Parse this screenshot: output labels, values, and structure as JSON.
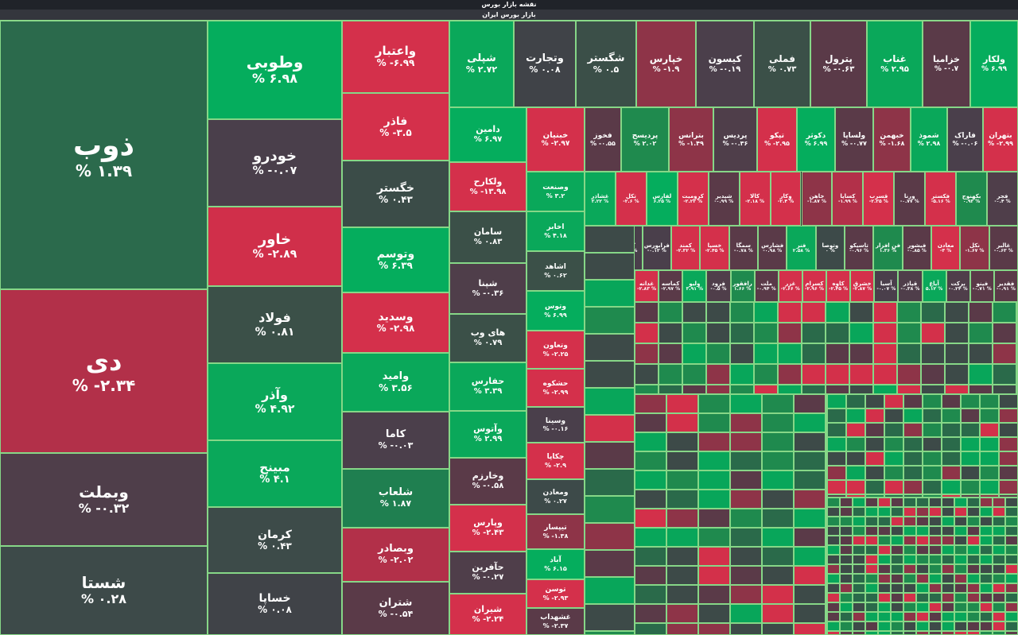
{
  "header": {
    "title": "نقشه بازار بورس",
    "subtitle": "بازار بورس ایران"
  },
  "colors": {
    "strong_green": "#08a65a",
    "green": "#1f8a4e",
    "dark_green": "#2a6a4a",
    "neutral": "#3d4a48",
    "dark_red": "#5a3a48",
    "red": "#b0304a",
    "strong_red": "#d3304a",
    "border": "#86d787"
  },
  "tiles": [
    {
      "symbol": "ذوب",
      "change": "% ۱.۳۹",
      "color": "#2b6a4c"
    },
    {
      "symbol": "دی",
      "change": "% -۲.۳۴",
      "color": "#b23049"
    },
    {
      "symbol": "وبملت",
      "change": "% -۰.۳۲",
      "color": "#4f3e4a"
    },
    {
      "symbol": "شستا",
      "change": "% ۰.۲۸",
      "color": "#3d4a49"
    },
    {
      "symbol": "وطوبی",
      "change": "% ۶.۹۸",
      "color": "#05ad5d"
    },
    {
      "symbol": "خودرو",
      "change": "% -۰.۰۷",
      "color": "#4a3f4b"
    },
    {
      "symbol": "خاور",
      "change": "% -۲.۸۹",
      "color": "#d02f4a"
    },
    {
      "symbol": "فولاد",
      "change": "% ۰.۸۱",
      "color": "#3b5048"
    },
    {
      "symbol": "وآذر",
      "change": "% ۴.۹۲",
      "color": "#0aa85a"
    },
    {
      "symbol": "مبینح",
      "change": "% ۴.۱",
      "color": "#0aa85a"
    },
    {
      "symbol": "کرمان",
      "change": "% ۰.۴۳",
      "color": "#3d4b49"
    },
    {
      "symbol": "خساپا",
      "change": "% ۰.۰۸",
      "color": "#404348"
    },
    {
      "symbol": "واعتبار",
      "change": "% -۶.۹۹",
      "color": "#d4304b"
    },
    {
      "symbol": "فاذر",
      "change": "% -۳.۵",
      "color": "#d4304b"
    },
    {
      "symbol": "خگستر",
      "change": "% ۰.۴۳",
      "color": "#3b4c48"
    },
    {
      "symbol": "وتوسم",
      "change": "% ۶.۳۹",
      "color": "#05ad5d"
    },
    {
      "symbol": "وسدید",
      "change": "% -۲.۹۸",
      "color": "#d4304b"
    },
    {
      "symbol": "وامید",
      "change": "% ۳.۵۶",
      "color": "#0aa85a"
    },
    {
      "symbol": "کاما",
      "change": "% -۰.۰۳",
      "color": "#4b3f4b"
    },
    {
      "symbol": "شلعاب",
      "change": "% ۱.۸۷",
      "color": "#1f7f50"
    },
    {
      "symbol": "وبصادر",
      "change": "% -۲.۰۲",
      "color": "#b23049"
    },
    {
      "symbol": "شتران",
      "change": "% -۰.۵۴",
      "color": "#5a3a48"
    },
    {
      "symbol": "شپلی",
      "change": "% ۲.۷۲",
      "color": "#0aa85a"
    },
    {
      "symbol": "وتجارت",
      "change": "% ۰.۰۸",
      "color": "#404348"
    },
    {
      "symbol": "شگستر",
      "change": "% ۰.۵",
      "color": "#3b4f48"
    },
    {
      "symbol": "خپارس",
      "change": "% -۱.۹",
      "color": "#8e3448"
    },
    {
      "symbol": "کیسون",
      "change": "% -۰.۱۹",
      "color": "#4b3f4b"
    },
    {
      "symbol": "فملی",
      "change": "% ۰.۷۳",
      "color": "#3b5048"
    },
    {
      "symbol": "پترول",
      "change": "% -۰.۶۳",
      "color": "#5a3a48"
    },
    {
      "symbol": "غناب",
      "change": "% ۲.۹۵",
      "color": "#0aa85a"
    },
    {
      "symbol": "خزامیا",
      "change": "% -۰.۷",
      "color": "#5a3a48"
    },
    {
      "symbol": "ولکار",
      "change": "% ۶.۹۹",
      "color": "#05ad5d"
    },
    {
      "symbol": "دامین",
      "change": "% ۶.۹۷",
      "color": "#05ad5d"
    },
    {
      "symbol": "ولکارح",
      "change": "% -۱۳.۹۸",
      "color": "#d4304b"
    },
    {
      "symbol": "سامان",
      "change": "% ۰.۸۳",
      "color": "#3b5048"
    },
    {
      "symbol": "شپنا",
      "change": "% -۰.۳۶",
      "color": "#4f3e4a"
    },
    {
      "symbol": "های وب",
      "change": "% ۰.۷۹",
      "color": "#3b5048"
    },
    {
      "symbol": "حفارس",
      "change": "% ۳.۳۹",
      "color": "#0aa85a"
    },
    {
      "symbol": "وآتوس",
      "change": "% ۲.۹۹",
      "color": "#0aa85a"
    },
    {
      "symbol": "وخارزم",
      "change": "% -۰.۵۸",
      "color": "#5a3a48"
    },
    {
      "symbol": "وپارس",
      "change": "% -۲.۴۳",
      "color": "#d4304b"
    },
    {
      "symbol": "حآفرین",
      "change": "% -۰.۲۷",
      "color": "#4f3e4a"
    },
    {
      "symbol": "شیران",
      "change": "% -۲.۲۴",
      "color": "#d4304b"
    },
    {
      "symbol": "خبنیان",
      "change": "% -۲.۹۷",
      "color": "#d4304b"
    },
    {
      "symbol": "فخوز",
      "change": "% -۰.۵۵",
      "color": "#5a3a48"
    },
    {
      "symbol": "پردیسح",
      "change": "% ۲.۰۲",
      "color": "#1f8a4e"
    },
    {
      "symbol": "بترانس",
      "change": "% -۱.۴۹",
      "color": "#8e3448"
    },
    {
      "symbol": "پردیس",
      "change": "% -۰.۳۶",
      "color": "#4f3e4a"
    },
    {
      "symbol": "تپکو",
      "change": "% -۲.۹۵",
      "color": "#d4304b"
    },
    {
      "symbol": "دکوثر",
      "change": "% ۶.۹۹",
      "color": "#05ad5d"
    },
    {
      "symbol": "ولساپا",
      "change": "% -۰.۷۷",
      "color": "#5a3a48"
    },
    {
      "symbol": "خبهمن",
      "change": "% -۱.۶۸",
      "color": "#8e3448"
    },
    {
      "symbol": "شموذ",
      "change": "% ۲.۹۸",
      "color": "#0aa85a"
    },
    {
      "symbol": "فاراک",
      "change": "% -۰.۰۶",
      "color": "#4a3f4b"
    },
    {
      "symbol": "بتهران",
      "change": "% -۲.۹۹",
      "color": "#d4304b"
    },
    {
      "symbol": "وصنعت",
      "change": "% ۳.۲",
      "color": "#0aa85a"
    },
    {
      "symbol": "اخابر",
      "change": "% ۴.۱۸",
      "color": "#0aa85a"
    },
    {
      "symbol": "اشاهد",
      "change": "% ۰.۶۲",
      "color": "#3b5048"
    },
    {
      "symbol": "وتوس",
      "change": "% ۶.۹۹",
      "color": "#05ad5d"
    },
    {
      "symbol": "وتعاون",
      "change": "% -۲.۲۵",
      "color": "#d4304b"
    },
    {
      "symbol": "حشکوه",
      "change": "% -۲.۹۹",
      "color": "#d4304b"
    },
    {
      "symbol": "وسینا",
      "change": "% -۰.۱۶",
      "color": "#4a3f4b"
    },
    {
      "symbol": "چکاپا",
      "change": "% -۲.۹",
      "color": "#d4304b"
    },
    {
      "symbol": "ومعادن",
      "change": "% ۰.۲۷",
      "color": "#3d4a49"
    },
    {
      "symbol": "تیپسار",
      "change": "% -۱.۳۸",
      "color": "#8e3448"
    },
    {
      "symbol": "آباد",
      "change": "% ۶.۱۵",
      "color": "#05ad5d"
    },
    {
      "symbol": "توسن",
      "change": "% -۲.۹۳",
      "color": "#d4304b"
    },
    {
      "symbol": "غشهداب",
      "change": "% -۲.۳۷",
      "color": "#5a3a48"
    }
  ],
  "small_tiles": [
    {
      "symbol": "غشاذر",
      "change": "۳.۲۲ %",
      "color": "#0aa85a"
    },
    {
      "symbol": "تکل",
      "change": "-۲.۶ %",
      "color": "#d4304b"
    },
    {
      "symbol": "لفارس",
      "change": "۶.۲۵ %",
      "color": "#05ad5d"
    },
    {
      "symbol": "کرومیت",
      "change": "-۲.۲۲ %",
      "color": "#d4304b"
    },
    {
      "symbol": "شپدیر",
      "change": "-۰.۹۹ %",
      "color": "#5a3a48"
    },
    {
      "symbol": "کالا",
      "change": "-۲.۱۸ %",
      "color": "#d4304b"
    },
    {
      "symbol": "وکار",
      "change": "-۲.۴ %",
      "color": "#d4304b"
    },
    {
      "symbol": "خاهن",
      "change": "-۱.۸۷ %",
      "color": "#8e3448"
    },
    {
      "symbol": "کساپا",
      "change": "-۱.۹۹ %",
      "color": "#b23049"
    },
    {
      "symbol": "قسرب",
      "change": "-۲.۳۵ %",
      "color": "#d4304b"
    },
    {
      "symbol": "ورنا",
      "change": "-۰.۷۷ %",
      "color": "#5a3a48"
    },
    {
      "symbol": "فکستر",
      "change": "-۵.۱۶ %",
      "color": "#d4304b"
    },
    {
      "symbol": "بکهنوج",
      "change": "۰.۹۳ %",
      "color": "#1f8a4e"
    },
    {
      "symbol": "فجر",
      "change": "-۰.۴ %",
      "color": "#4f3e4a"
    },
    {
      "symbol": "سفار",
      "change": "-۲.۹۷ %",
      "color": "#d4304b"
    },
    {
      "symbol": "کترام",
      "change": "-۰.۰۳ %",
      "color": "#4a3f4b"
    },
    {
      "symbol": "فرابورس",
      "change": "-۰.۱۳ %",
      "color": "#4a3f4b"
    },
    {
      "symbol": "کمند",
      "change": "-۲.۳۲ %",
      "color": "#d4304b"
    },
    {
      "symbol": "خسپا",
      "change": "-۲.۴۵ %",
      "color": "#d4304b"
    },
    {
      "symbol": "سمگا",
      "change": "-۰.۷۸ %",
      "color": "#5a3a48"
    },
    {
      "symbol": "فشارس",
      "change": "-۰.۹۸ %",
      "color": "#5a3a48"
    },
    {
      "symbol": "فنر",
      "change": "۲.۵۸ %",
      "color": "#0aa85a"
    },
    {
      "symbol": "وتوصا",
      "change": "۰ %",
      "color": "#3d4a49"
    },
    {
      "symbol": "تاسیکو",
      "change": "-۰.۹۶ %",
      "color": "#5a3a48"
    },
    {
      "symbol": "فن افزار",
      "change": "۱.۳۶ %",
      "color": "#1f8a4e"
    },
    {
      "symbol": "فیشور",
      "change": "-۰.۸۵ %",
      "color": "#5a3a48"
    },
    {
      "symbol": "معادن",
      "change": "-۳ %",
      "color": "#d4304b"
    },
    {
      "symbol": "نکل",
      "change": "-۱.۶۷ %",
      "color": "#8e3448"
    },
    {
      "symbol": "غالبر",
      "change": "-۰.۶۳ %",
      "color": "#5a3a48"
    },
    {
      "symbol": "غدانه",
      "change": "-۲.۸۳ %",
      "color": "#d4304b"
    },
    {
      "symbol": "کماسه",
      "change": "-۲.۹۷ %",
      "color": "#5a3a48"
    },
    {
      "symbol": "ولیو",
      "change": "۳.۹۱ %",
      "color": "#0aa85a"
    },
    {
      "symbol": "فرود",
      "change": "-۰.۵ %",
      "color": "#4f3e4a"
    },
    {
      "symbol": "رافقور",
      "change": "۱.۶۶ %",
      "color": "#1f8a4e"
    },
    {
      "symbol": "ملت",
      "change": "-۰.۹۴ %",
      "color": "#5a3a48"
    },
    {
      "symbol": "غزر",
      "change": "-۲.۶۶ %",
      "color": "#d4304b"
    },
    {
      "symbol": "کسرام",
      "change": "-۲.۹۶ %",
      "color": "#d4304b"
    },
    {
      "symbol": "کاوه",
      "change": "-۲.۴۵ %",
      "color": "#d4304b"
    },
    {
      "symbol": "خشرق",
      "change": "-۲.۸۷ %",
      "color": "#d4304b"
    },
    {
      "symbol": "آسیا",
      "change": "-۰.۰۷ %",
      "color": "#4a3f4b"
    },
    {
      "symbol": "قپاذر",
      "change": "-۰.۳۸ %",
      "color": "#4f3e4a"
    },
    {
      "symbol": "آپاغ",
      "change": "۵.۱۲ %",
      "color": "#0aa85a"
    },
    {
      "symbol": "برکت",
      "change": "-۰.۲۴ %",
      "color": "#4f3e4a"
    },
    {
      "symbol": "فپنو",
      "change": "-۰.۷۱ %",
      "color": "#5a3a48"
    },
    {
      "symbol": "فقدیر",
      "change": "-۰.۹۱ %",
      "color": "#5a3a48"
    }
  ]
}
